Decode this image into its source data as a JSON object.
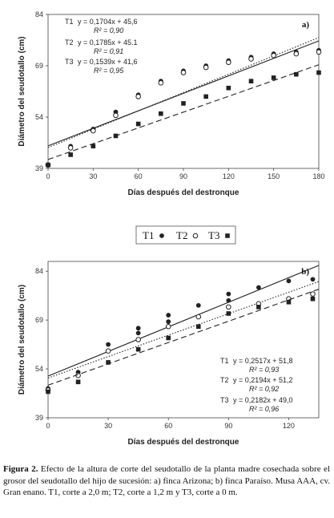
{
  "chart_data": [
    {
      "type": "scatter",
      "panel_label": "a)",
      "xlabel": "Días después del destronque",
      "ylabel": "Diámetro del seudotallo (cm)",
      "xlim": [
        0,
        180
      ],
      "ylim": [
        39,
        84
      ],
      "xticks": [
        0,
        30,
        60,
        90,
        120,
        150,
        180
      ],
      "yticks": [
        39,
        54,
        69,
        84
      ],
      "grid": false,
      "equations": [
        {
          "name": "T1",
          "eq": "y = 0,1704x + 45,6",
          "r2": "R² = 0,90"
        },
        {
          "name": "T2",
          "eq": "y = 0,1785x + 45.1",
          "r2": "R² = 0,91"
        },
        {
          "name": "T3",
          "eq": "y = 0,1539x + 41,6",
          "r2": "R² = 0,95"
        }
      ],
      "series": [
        {
          "name": "T1",
          "marker": "filled-circle",
          "line": "solid",
          "slope": 0.1704,
          "intercept": 45.6,
          "x": [
            0,
            15,
            30,
            45,
            60,
            75,
            90,
            105,
            120,
            135,
            150,
            165,
            180
          ],
          "y": [
            40,
            45.5,
            50.5,
            55.5,
            60.5,
            64.5,
            67.5,
            69,
            70.5,
            71.5,
            72.5,
            73,
            73.5
          ]
        },
        {
          "name": "T2",
          "marker": "open-circle",
          "line": "dotted",
          "slope": 0.1785,
          "intercept": 45.1,
          "x": [
            0,
            15,
            30,
            45,
            60,
            75,
            90,
            105,
            120,
            135,
            150,
            165,
            180
          ],
          "y": [
            40,
            45,
            50,
            54.5,
            60,
            64,
            67,
            68.5,
            70,
            71,
            72,
            72.5,
            73
          ]
        },
        {
          "name": "T3",
          "marker": "filled-square",
          "line": "dashed",
          "slope": 0.1539,
          "intercept": 41.6,
          "x": [
            0,
            15,
            30,
            45,
            60,
            75,
            90,
            105,
            120,
            135,
            150,
            165,
            180
          ],
          "y": [
            40,
            43,
            45.5,
            48.5,
            52,
            55,
            58,
            60,
            62.5,
            64.5,
            65.5,
            66.5,
            67
          ]
        }
      ]
    },
    {
      "type": "scatter",
      "panel_label": "b)",
      "xlabel": "Días después del destronque",
      "ylabel": "Diámetro del seudotallo (cm)",
      "xlim": [
        0,
        135
      ],
      "ylim": [
        39,
        87
      ],
      "xticks": [
        0,
        30,
        60,
        90,
        120
      ],
      "yticks": [
        39,
        54,
        69,
        84
      ],
      "grid": false,
      "equations": [
        {
          "name": "T1",
          "eq": "y = 0,2517x + 51,8",
          "r2": "R² = 0,93"
        },
        {
          "name": "T2",
          "eq": "y = 0,2194x + 51,2",
          "r2": "R² = 0,92"
        },
        {
          "name": "T3",
          "eq": "y = 0,2182x + 49,0",
          "r2": "R² = 0,96"
        }
      ],
      "series": [
        {
          "name": "T1",
          "marker": "filled-circle",
          "line": "solid",
          "slope": 0.2517,
          "intercept": 51.8,
          "x": [
            0,
            15,
            30,
            45,
            45,
            60,
            60,
            75,
            90,
            90,
            105,
            120,
            132
          ],
          "y": [
            48,
            53,
            61.5,
            65,
            66.5,
            68.5,
            70.5,
            73.5,
            75,
            77,
            79,
            81,
            81.5
          ]
        },
        {
          "name": "T2",
          "marker": "open-circle",
          "line": "dotted",
          "slope": 0.2194,
          "intercept": 51.2,
          "x": [
            0,
            15,
            30,
            45,
            60,
            75,
            90,
            105,
            120,
            132
          ],
          "y": [
            47.5,
            52,
            59.5,
            63,
            67,
            70,
            73,
            74,
            75.5,
            77
          ]
        },
        {
          "name": "T3",
          "marker": "filled-square",
          "line": "dashed",
          "slope": 0.2182,
          "intercept": 49.0,
          "x": [
            0,
            15,
            30,
            45,
            60,
            75,
            90,
            105,
            120,
            132
          ],
          "y": [
            47,
            50,
            56,
            60,
            63.5,
            67,
            71,
            73,
            74.5,
            75.5
          ]
        }
      ]
    }
  ],
  "legend": [
    {
      "label": "T1",
      "marker": "filled-circle"
    },
    {
      "label": "T2",
      "marker": "open-circle"
    },
    {
      "label": "T3",
      "marker": "filled-square"
    }
  ],
  "caption": {
    "label": "Figura 2.",
    "text": " Efecto de la altura de corte del seudotallo de la planta madre cosechada sobre el grosor del seudotallo del hijo de sucesión: a) finca Arizona; b) finca Paraíso. Musa AAA, cv. Gran enano. T1, corte a 2,0 m; T2, corte a 1,2 m y T3, corte a 0 m."
  }
}
